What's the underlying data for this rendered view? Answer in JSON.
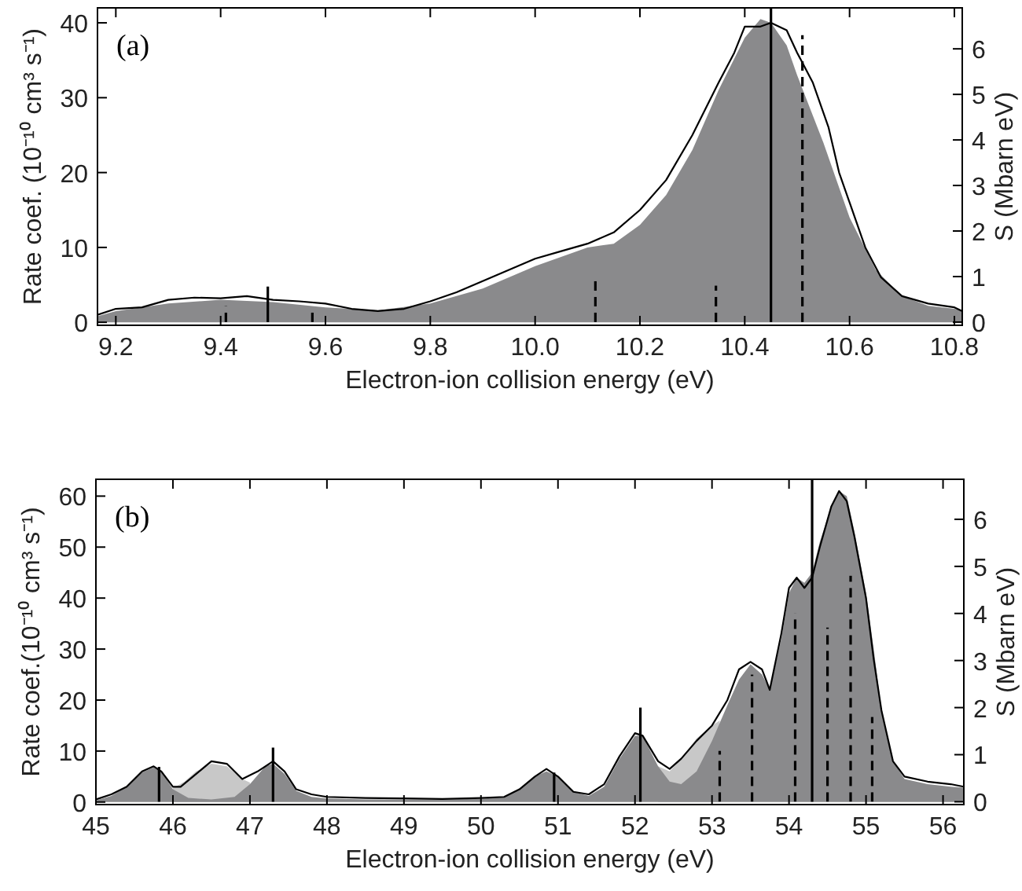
{
  "chart_data": [
    {
      "type": "line",
      "xlabel": "Electron-ion collision energy (eV)",
      "ylabel": "Rate coef. (10⁻¹⁰ cm³ s⁻¹)",
      "y2label": "S (Mbarn eV)",
      "annotations": [
        "(a)"
      ],
      "xlim": [
        9.165,
        10.815
      ],
      "ylim": [
        -0.4,
        42
      ],
      "y2lim": [
        -0.07,
        6.9
      ],
      "xticks": [
        9.2,
        9.4,
        9.6,
        9.8,
        {
          "value": 10,
          "label": "10.0"
        },
        10.2,
        10.4,
        10.6,
        10.8
      ],
      "yticks": [
        0,
        10,
        20,
        30,
        40
      ],
      "y2ticks": [
        0,
        1,
        2,
        3,
        4,
        5,
        6
      ],
      "grid": false,
      "series": [
        {
          "type": "area",
          "color": "#8a8a8c",
          "x": [
            9.165,
            9.2,
            9.3,
            9.4,
            9.5,
            9.6,
            9.7,
            9.8,
            9.9,
            10.0,
            10.1,
            10.15,
            10.2,
            10.25,
            10.3,
            10.35,
            10.4,
            10.43,
            10.45,
            10.48,
            10.5,
            10.55,
            10.6,
            10.65,
            10.7,
            10.75,
            10.8,
            10.815
          ],
          "values": [
            0.8,
            1.5,
            2.5,
            3,
            2.7,
            2,
            1.6,
            2.5,
            4.5,
            7.5,
            10,
            10.5,
            13,
            17,
            23,
            31,
            38,
            40.5,
            40,
            37,
            33,
            24,
            14,
            7,
            3.5,
            2.2,
            1.8,
            1.6
          ]
        },
        {
          "color": "#000000",
          "x": [
            9.165,
            9.2,
            9.25,
            9.3,
            9.35,
            9.4,
            9.45,
            9.5,
            9.55,
            9.6,
            9.65,
            9.7,
            9.75,
            9.8,
            9.85,
            9.9,
            9.95,
            10.0,
            10.05,
            10.1,
            10.15,
            10.2,
            10.25,
            10.3,
            10.35,
            10.38,
            10.4,
            10.43,
            10.45,
            10.48,
            10.5,
            10.53,
            10.56,
            10.58,
            10.6,
            10.63,
            10.66,
            10.7,
            10.75,
            10.8,
            10.815
          ],
          "values": [
            1,
            1.8,
            2,
            3,
            3.3,
            3.2,
            3.5,
            3,
            2.8,
            2.5,
            1.8,
            1.5,
            1.8,
            2.8,
            4,
            5.5,
            7,
            8.5,
            9.5,
            10.5,
            12,
            15,
            19,
            25,
            32,
            36,
            39.5,
            39.5,
            40,
            39,
            36,
            32,
            26,
            20,
            16,
            10,
            6,
            3.5,
            2.5,
            2,
            1.5
          ]
        },
        {
          "type": "bar",
          "axis": "y2",
          "color": "#000000",
          "line_style": "solid",
          "x": [
            9.49,
            10.45
          ],
          "values": [
            0.78,
            6.9
          ]
        },
        {
          "type": "bar",
          "axis": "y2",
          "color": "#000000",
          "line_style": "dashed",
          "x": [
            9.41,
            9.575,
            10.115,
            10.345,
            10.51
          ],
          "values": [
            0.35,
            0.3,
            1.0,
            0.8,
            6.3
          ]
        }
      ]
    },
    {
      "type": "line",
      "xlabel": "Electron-ion collision energy (eV)",
      "ylabel": "Rate coef.(10⁻¹⁰ cm³ s⁻¹)",
      "y2label": "S (Mbarn eV)",
      "annotations": [
        "(b)"
      ],
      "xlim": [
        45,
        56.27
      ],
      "ylim": [
        -0.5,
        63.3
      ],
      "y2lim": [
        -0.06,
        6.85
      ],
      "xticks": [
        45,
        46,
        47,
        48,
        49,
        50,
        51,
        52,
        53,
        54,
        55,
        56
      ],
      "yticks": [
        0,
        10,
        20,
        30,
        40,
        50,
        60
      ],
      "y2ticks": [
        0,
        1,
        2,
        3,
        4,
        5,
        6
      ],
      "grid": false,
      "series": [
        {
          "type": "area",
          "color": "#c8c8c8",
          "x": [
            46.0,
            46.15,
            46.3,
            46.5,
            46.7,
            46.9,
            47.0
          ],
          "values": [
            2.7,
            4,
            6,
            7.5,
            7,
            4.5,
            3.8
          ]
        },
        {
          "type": "area",
          "color": "#c8c8c8",
          "x": [
            52.3,
            52.45,
            52.6,
            52.8,
            53.0,
            53.1
          ],
          "values": [
            7,
            6,
            8.5,
            12.5,
            15,
            16
          ]
        },
        {
          "type": "area",
          "color": "#8a8a8c",
          "x": [
            45,
            45.2,
            45.4,
            45.6,
            45.75,
            45.85,
            46.0,
            46.2,
            46.5,
            46.8,
            47.0,
            47.2,
            47.3,
            47.45,
            47.6,
            47.8,
            48,
            48.5,
            49,
            49.5,
            50,
            50.3,
            50.5,
            50.7,
            50.85,
            51,
            51.2,
            51.4,
            51.6,
            51.8,
            52.0,
            52.1,
            52.3,
            52.45,
            52.6,
            52.8,
            53.0,
            53.2,
            53.35,
            53.5,
            53.65,
            53.75,
            53.9,
            54.0,
            54.1,
            54.2,
            54.3,
            54.4,
            54.55,
            54.65,
            54.75,
            54.85,
            55,
            55.1,
            55.2,
            55.35,
            55.5,
            55.8,
            56.1,
            56.27
          ],
          "values": [
            0.3,
            1.2,
            3,
            5.8,
            6.8,
            6,
            2.5,
            0.8,
            0.5,
            1,
            3.5,
            7,
            7.5,
            5.5,
            2.2,
            1,
            0.7,
            0.5,
            0.5,
            0.5,
            0.6,
            1,
            2.5,
            5,
            6,
            5,
            2,
            1.2,
            3,
            8.5,
            13,
            13,
            7,
            4,
            3.5,
            6,
            12,
            19,
            24,
            27,
            25,
            22,
            32,
            41,
            44,
            43,
            45,
            51,
            58,
            61,
            60,
            53,
            41,
            30,
            18,
            8,
            4.5,
            3.5,
            3,
            2.8
          ]
        },
        {
          "color": "#000000",
          "x": [
            45,
            45.2,
            45.4,
            45.6,
            45.75,
            45.85,
            46.0,
            46.1,
            46.3,
            46.5,
            46.7,
            46.9,
            47.1,
            47.3,
            47.45,
            47.6,
            47.8,
            48,
            48.5,
            49,
            49.5,
            50,
            50.3,
            50.5,
            50.7,
            50.85,
            51.0,
            51.2,
            51.4,
            51.6,
            51.8,
            52.0,
            52.1,
            52.3,
            52.45,
            52.6,
            52.8,
            53.0,
            53.2,
            53.35,
            53.5,
            53.65,
            53.75,
            53.9,
            54.0,
            54.1,
            54.2,
            54.3,
            54.4,
            54.55,
            54.65,
            54.75,
            54.85,
            55.0,
            55.1,
            55.2,
            55.35,
            55.5,
            55.8,
            56.1,
            56.27
          ],
          "values": [
            0.5,
            1.5,
            3,
            6,
            7,
            6,
            3,
            3,
            5.5,
            8,
            7.5,
            4.5,
            6,
            8,
            6,
            2.5,
            1.5,
            1,
            0.8,
            0.7,
            0.6,
            0.8,
            1,
            2.5,
            5,
            6.5,
            5,
            2,
            1.5,
            3.5,
            9,
            13.5,
            13,
            8,
            6.5,
            8.5,
            12,
            15,
            20,
            26,
            27.5,
            26,
            22,
            33,
            42,
            44,
            42,
            44,
            50,
            58,
            61,
            59,
            52,
            40,
            28,
            18,
            8,
            5,
            4,
            3.5,
            3
          ]
        },
        {
          "type": "bar",
          "axis": "y2",
          "color": "#000000",
          "line_style": "solid",
          "x": [
            45.82,
            47.3,
            50.95,
            52.07,
            54.3
          ],
          "values": [
            0.74,
            1.15,
            0.62,
            2.0,
            6.85
          ]
        },
        {
          "type": "bar",
          "axis": "y2",
          "color": "#000000",
          "line_style": "dashed",
          "x": [
            53.1,
            53.52,
            54.08,
            54.5,
            54.8,
            55.08
          ],
          "values": [
            1.08,
            2.7,
            4.0,
            3.7,
            4.8,
            1.8
          ]
        }
      ]
    }
  ]
}
